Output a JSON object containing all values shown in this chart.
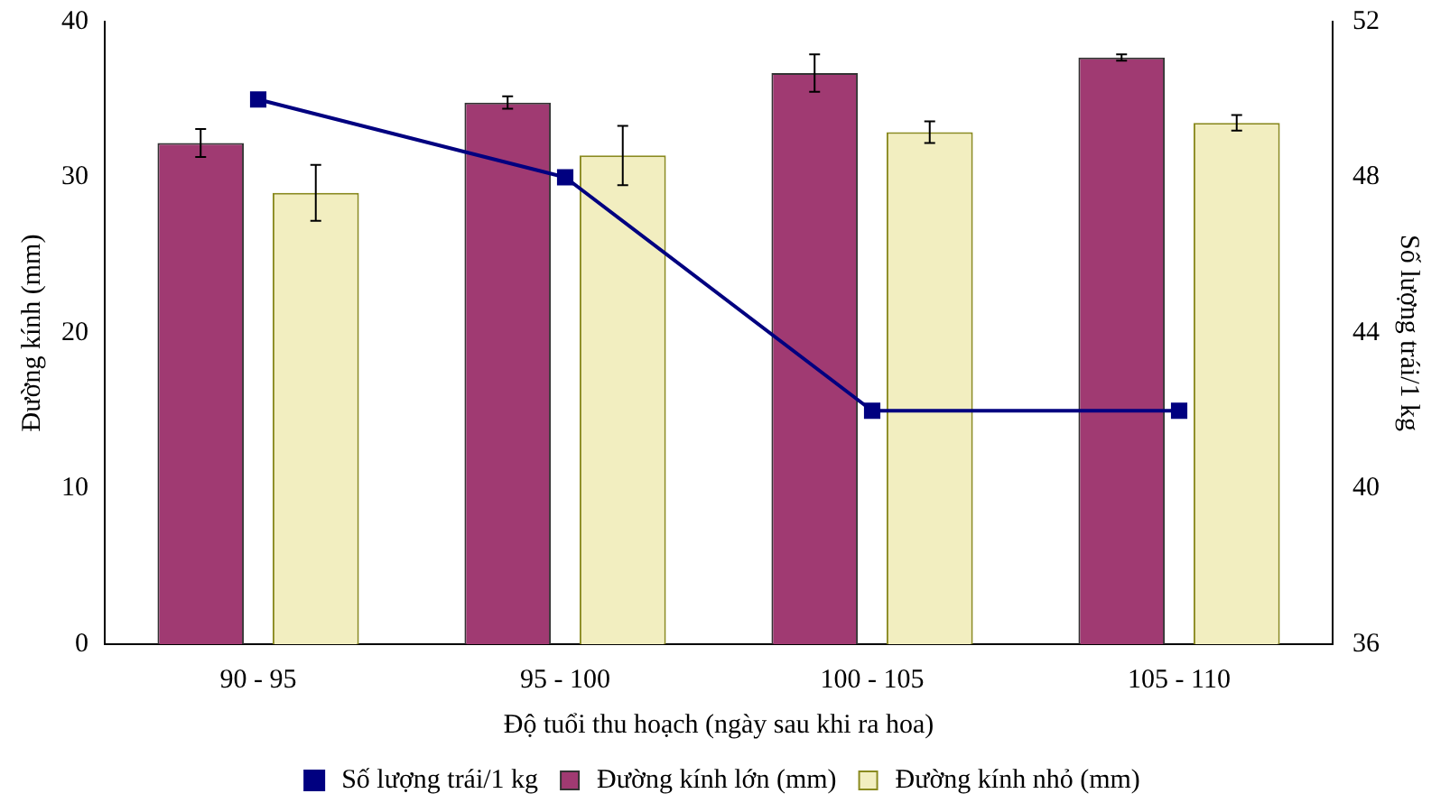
{
  "chart_data": {
    "type": "bar",
    "xlabel": "Độ tuổi thu hoạch (ngày sau khi ra hoa)",
    "ylabel": "Đường kính (mm)",
    "y2label": "Số lượng trái/1 kg",
    "categories": [
      "90 - 95",
      "95 - 100",
      "100 - 105",
      "105 - 110"
    ],
    "series": [
      {
        "name": "Đường kính lớn (mm)",
        "color": "#a03a72",
        "values": [
          32.2,
          34.8,
          36.7,
          37.7
        ],
        "errors": [
          0.9,
          0.4,
          1.2,
          0.2
        ]
      },
      {
        "name": "Đường kính nhỏ (mm)",
        "color": "#f2eec0",
        "values": [
          29.0,
          31.4,
          32.9,
          33.5
        ],
        "errors": [
          1.8,
          1.9,
          0.7,
          0.5
        ]
      },
      {
        "name": "Số lượng trái/1 kg",
        "type": "line",
        "axis": "y2",
        "color": "#000080",
        "values": [
          50.0,
          48.0,
          42.0,
          42.0
        ],
        "marker": "square",
        "line_style": "solid"
      }
    ],
    "ylim": [
      0,
      40
    ],
    "yticks": [
      0,
      10,
      20,
      30,
      40
    ],
    "y2lim": [
      36,
      52
    ],
    "y2ticks": [
      36,
      40,
      44,
      48,
      52
    ],
    "grid": false,
    "legend": "bottom"
  }
}
